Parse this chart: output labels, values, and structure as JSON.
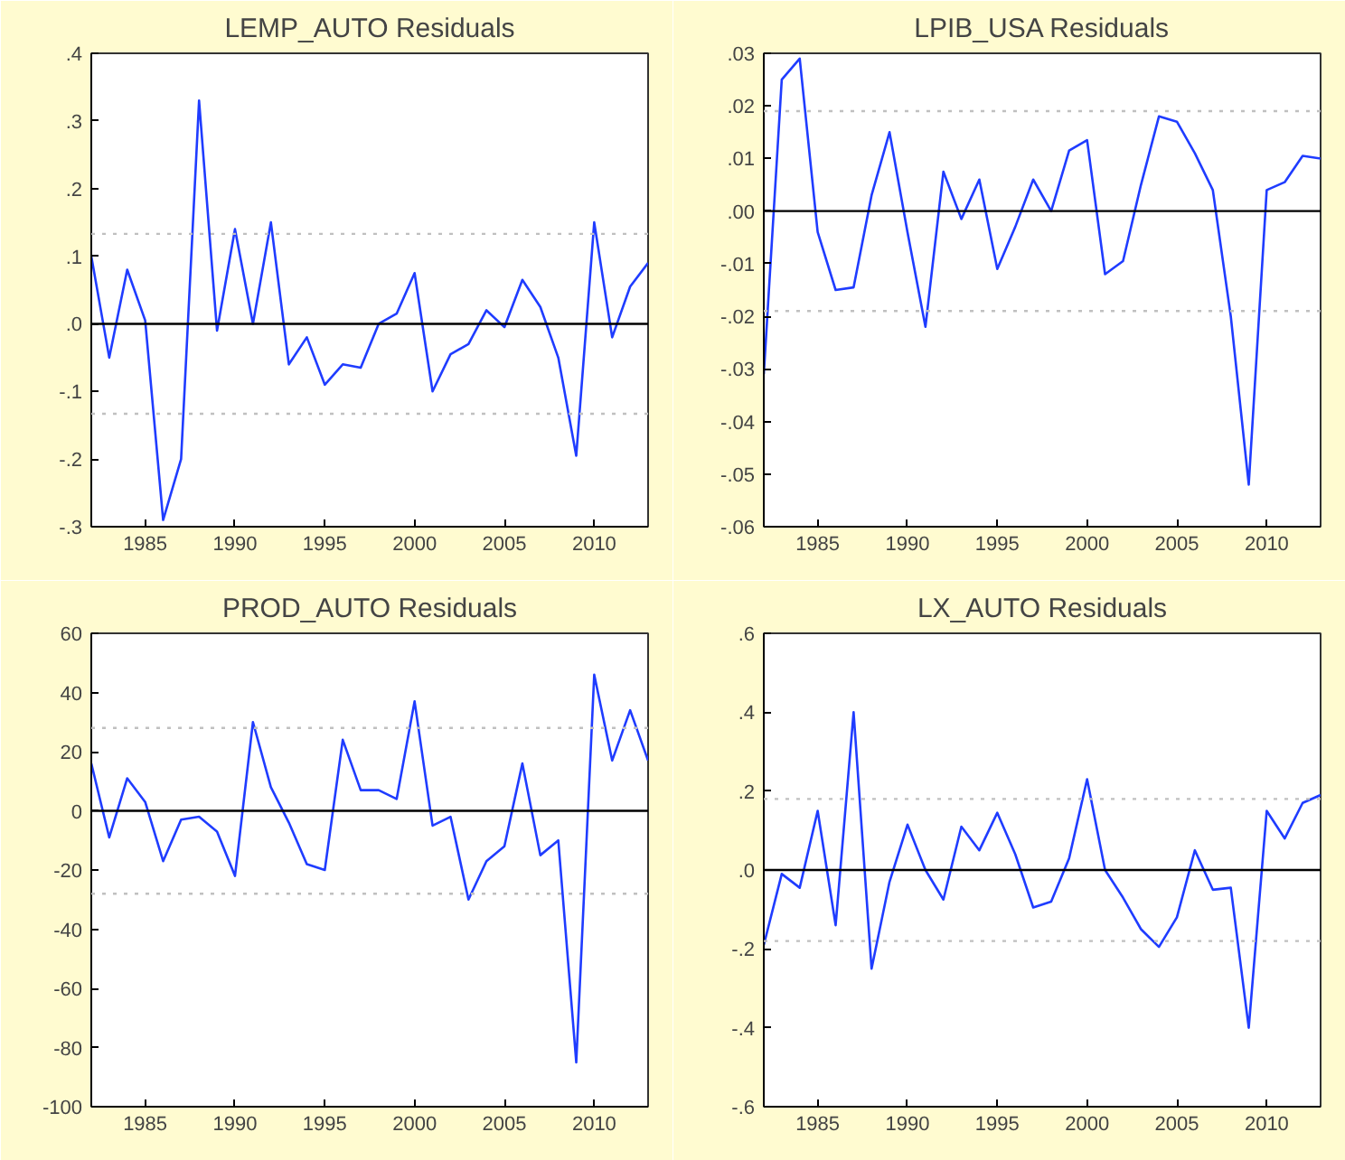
{
  "chart_data": [
    {
      "type": "line",
      "title": "LEMP_AUTO Residuals",
      "x": [
        1982,
        1983,
        1984,
        1985,
        1986,
        1987,
        1988,
        1989,
        1990,
        1991,
        1992,
        1993,
        1994,
        1995,
        1996,
        1997,
        1998,
        1999,
        2000,
        2001,
        2002,
        2003,
        2004,
        2005,
        2006,
        2007,
        2008,
        2009,
        2010,
        2011,
        2012,
        2013
      ],
      "series": [
        {
          "color": "#1f3cff",
          "values": [
            0.1,
            -0.05,
            0.08,
            0.005,
            -0.29,
            -0.2,
            0.33,
            -0.01,
            0.14,
            0.0,
            0.15,
            -0.06,
            -0.02,
            -0.09,
            -0.06,
            -0.065,
            0.0,
            0.015,
            0.075,
            -0.1,
            -0.045,
            -0.03,
            0.02,
            -0.005,
            0.065,
            0.025,
            -0.05,
            -0.195,
            0.15,
            -0.02,
            0.055,
            0.09
          ]
        }
      ],
      "xlim": [
        1982,
        2013
      ],
      "xticks": [
        1985,
        1990,
        1995,
        2000,
        2005,
        2010
      ],
      "ylim": [
        -0.3,
        0.4
      ],
      "yticks": [
        {
          "value": -0.3,
          "label": "-.3"
        },
        {
          "value": -0.2,
          "label": "-.2"
        },
        {
          "value": -0.1,
          "label": "-.1"
        },
        {
          "value": 0,
          "label": ".0"
        },
        {
          "value": 0.1,
          "label": ".1"
        },
        {
          "value": 0.2,
          "label": ".2"
        },
        {
          "value": 0.3,
          "label": ".3"
        },
        {
          "value": 0.4,
          "label": ".4"
        }
      ],
      "ref_lines": [
        {
          "axis": "y",
          "value": 0,
          "color": "#000000",
          "line_style": "solid"
        },
        {
          "axis": "y",
          "value": 0.133,
          "color": "#c0c0c0",
          "line_style": "dotted"
        },
        {
          "axis": "y",
          "value": -0.133,
          "color": "#c0c0c0",
          "line_style": "dotted"
        }
      ],
      "grid": false
    },
    {
      "type": "line",
      "title": "LPIB_USA Residuals",
      "x": [
        1982,
        1983,
        1984,
        1985,
        1986,
        1987,
        1988,
        1989,
        1990,
        1991,
        1992,
        1993,
        1994,
        1995,
        1996,
        1997,
        1998,
        1999,
        2000,
        2001,
        2002,
        2003,
        2004,
        2005,
        2006,
        2007,
        2008,
        2009,
        2010,
        2011,
        2012,
        2013
      ],
      "series": [
        {
          "color": "#1f3cff",
          "values": [
            -0.031,
            0.025,
            0.029,
            -0.004,
            -0.015,
            -0.0145,
            0.003,
            0.015,
            -0.004,
            -0.022,
            0.0075,
            -0.0015,
            0.006,
            -0.011,
            -0.003,
            0.006,
            0.0,
            0.0115,
            0.0135,
            -0.012,
            -0.0095,
            0.005,
            0.018,
            0.017,
            0.011,
            0.004,
            -0.02,
            -0.052,
            0.004,
            0.0055,
            0.0105,
            0.01
          ]
        }
      ],
      "xlim": [
        1982,
        2013
      ],
      "xticks": [
        1985,
        1990,
        1995,
        2000,
        2005,
        2010
      ],
      "ylim": [
        -0.06,
        0.03
      ],
      "yticks": [
        {
          "value": -0.06,
          "label": "-.06"
        },
        {
          "value": -0.05,
          "label": "-.05"
        },
        {
          "value": -0.04,
          "label": "-.04"
        },
        {
          "value": -0.03,
          "label": "-.03"
        },
        {
          "value": -0.02,
          "label": "-.02"
        },
        {
          "value": -0.01,
          "label": "-.01"
        },
        {
          "value": 0,
          "label": ".00"
        },
        {
          "value": 0.01,
          "label": ".01"
        },
        {
          "value": 0.02,
          "label": ".02"
        },
        {
          "value": 0.03,
          "label": ".03"
        }
      ],
      "ref_lines": [
        {
          "axis": "y",
          "value": 0,
          "color": "#000000",
          "line_style": "solid"
        },
        {
          "axis": "y",
          "value": 0.019,
          "color": "#c0c0c0",
          "line_style": "dotted"
        },
        {
          "axis": "y",
          "value": -0.019,
          "color": "#c0c0c0",
          "line_style": "dotted"
        }
      ],
      "grid": false
    },
    {
      "type": "line",
      "title": "PROD_AUTO Residuals",
      "x": [
        1982,
        1983,
        1984,
        1985,
        1986,
        1987,
        1988,
        1989,
        1990,
        1991,
        1992,
        1993,
        1994,
        1995,
        1996,
        1997,
        1998,
        1999,
        2000,
        2001,
        2002,
        2003,
        2004,
        2005,
        2006,
        2007,
        2008,
        2009,
        2010,
        2011,
        2012,
        2013
      ],
      "series": [
        {
          "color": "#1f3cff",
          "values": [
            16,
            -9,
            11,
            3,
            -17,
            -3,
            -2,
            -7,
            -22,
            30,
            8,
            -4,
            -18,
            -20,
            24,
            7,
            7,
            4,
            37,
            -5,
            -2,
            -30,
            -17,
            -12,
            16,
            -15,
            -10,
            -85,
            46,
            17,
            34,
            17
          ]
        }
      ],
      "xlim": [
        1982,
        2013
      ],
      "xticks": [
        1985,
        1990,
        1995,
        2000,
        2005,
        2010
      ],
      "ylim": [
        -100,
        60
      ],
      "yticks": [
        -100,
        -80,
        -60,
        -40,
        -20,
        0,
        20,
        40,
        60
      ],
      "ref_lines": [
        {
          "axis": "y",
          "value": 0,
          "color": "#000000",
          "line_style": "solid"
        },
        {
          "axis": "y",
          "value": 28,
          "color": "#c0c0c0",
          "line_style": "dotted"
        },
        {
          "axis": "y",
          "value": -28,
          "color": "#c0c0c0",
          "line_style": "dotted"
        }
      ],
      "grid": false
    },
    {
      "type": "line",
      "title": "LX_AUTO Residuals",
      "x": [
        1982,
        1983,
        1984,
        1985,
        1986,
        1987,
        1988,
        1989,
        1990,
        1991,
        1992,
        1993,
        1994,
        1995,
        1996,
        1997,
        1998,
        1999,
        2000,
        2001,
        2002,
        2003,
        2004,
        2005,
        2006,
        2007,
        2008,
        2009,
        2010,
        2011,
        2012,
        2013
      ],
      "series": [
        {
          "color": "#1f3cff",
          "values": [
            -0.19,
            -0.01,
            -0.045,
            0.15,
            -0.14,
            0.4,
            -0.25,
            -0.03,
            0.115,
            0.0,
            -0.075,
            0.11,
            0.05,
            0.145,
            0.04,
            -0.095,
            -0.08,
            0.03,
            0.23,
            0.0,
            -0.07,
            -0.15,
            -0.195,
            -0.12,
            0.05,
            -0.05,
            -0.045,
            -0.4,
            0.15,
            0.08,
            0.17,
            0.19
          ]
        }
      ],
      "xlim": [
        1982,
        2013
      ],
      "xticks": [
        1985,
        1990,
        1995,
        2000,
        2005,
        2010
      ],
      "ylim": [
        -0.6,
        0.6
      ],
      "yticks": [
        {
          "value": -0.6,
          "label": "-.6"
        },
        {
          "value": -0.4,
          "label": "-.4"
        },
        {
          "value": -0.2,
          "label": "-.2"
        },
        {
          "value": 0,
          "label": ".0"
        },
        {
          "value": 0.2,
          "label": ".2"
        },
        {
          "value": 0.4,
          "label": ".4"
        },
        {
          "value": 0.6,
          "label": ".6"
        }
      ],
      "ref_lines": [
        {
          "axis": "y",
          "value": 0,
          "color": "#000000",
          "line_style": "solid"
        },
        {
          "axis": "y",
          "value": 0.18,
          "color": "#c0c0c0",
          "line_style": "dotted"
        },
        {
          "axis": "y",
          "value": -0.18,
          "color": "#c0c0c0",
          "line_style": "dotted"
        }
      ],
      "grid": false
    }
  ]
}
